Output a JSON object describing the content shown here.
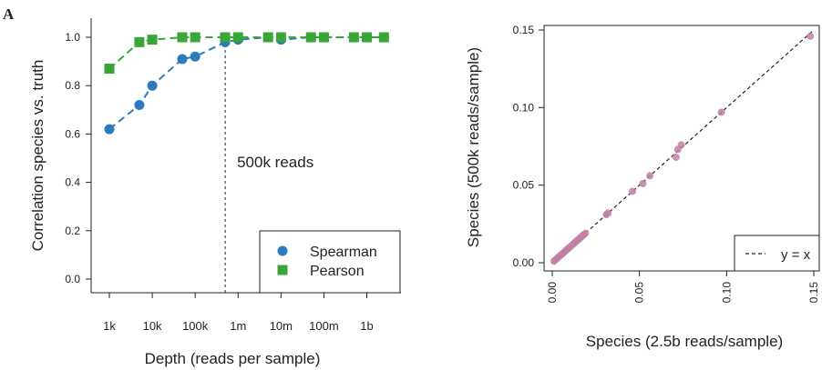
{
  "panel_label": "A",
  "chart_data": [
    {
      "type": "line",
      "xlabel": "Depth (reads per sample)",
      "ylabel": "Correlation species vs. truth",
      "ylim": [
        0,
        1.0
      ],
      "y_ticks": [
        "0.0",
        "0.2",
        "0.4",
        "0.6",
        "0.8",
        "1.0"
      ],
      "x_tick_labels": [
        "1k",
        "10k",
        "100k",
        "1m",
        "10m",
        "100m",
        "1b"
      ],
      "x_scale": "log10",
      "xlim_reads": [
        1000,
        3000000000
      ],
      "grid": false,
      "legend_position": "bottom-right",
      "annotation": {
        "text": "500k reads",
        "x_reads": 500000
      },
      "series": [
        {
          "name": "Spearman",
          "marker": "circle",
          "color": "#2b7bbd",
          "x_reads": [
            1000,
            5000,
            10000,
            50000,
            100000,
            500000,
            1000000,
            5000000,
            10000000,
            50000000,
            100000000,
            500000000,
            1000000000,
            2500000000
          ],
          "values": [
            0.62,
            0.72,
            0.8,
            0.91,
            0.92,
            0.98,
            0.99,
            1.0,
            0.99,
            1.0,
            1.0,
            1.0,
            1.0,
            1.0
          ]
        },
        {
          "name": "Pearson",
          "marker": "square",
          "color": "#3aa63a",
          "x_reads": [
            1000,
            5000,
            10000,
            50000,
            100000,
            500000,
            1000000,
            5000000,
            10000000,
            50000000,
            100000000,
            500000000,
            1000000000,
            2500000000
          ],
          "values": [
            0.87,
            0.98,
            0.99,
            1.0,
            1.0,
            1.0,
            1.0,
            1.0,
            1.0,
            1.0,
            1.0,
            1.0,
            1.0,
            1.0
          ]
        }
      ]
    },
    {
      "type": "scatter",
      "xlabel": "Species (2.5b reads/sample)",
      "ylabel": "Species (500k reads/sample)",
      "xlim": [
        0,
        0.15
      ],
      "ylim": [
        0,
        0.15
      ],
      "x_ticks": [
        "0.00",
        "0.05",
        "0.10",
        "0.15"
      ],
      "y_ticks": [
        "0.00",
        "0.05",
        "0.10",
        "0.15"
      ],
      "grid": false,
      "legend_position": "bottom-right",
      "reference_line": {
        "label": "y = x",
        "style": "dashed",
        "color": "#222222"
      },
      "point_color": "#c07fa4",
      "points": {
        "x": [
          0.001,
          0.002,
          0.003,
          0.004,
          0.005,
          0.006,
          0.007,
          0.008,
          0.009,
          0.01,
          0.011,
          0.012,
          0.013,
          0.014,
          0.015,
          0.016,
          0.017,
          0.018,
          0.019,
          0.031,
          0.032,
          0.046,
          0.052,
          0.056,
          0.071,
          0.072,
          0.074,
          0.097,
          0.148
        ],
        "y": [
          0.001,
          0.002,
          0.003,
          0.004,
          0.005,
          0.006,
          0.007,
          0.008,
          0.009,
          0.01,
          0.011,
          0.012,
          0.013,
          0.014,
          0.015,
          0.016,
          0.017,
          0.018,
          0.019,
          0.031,
          0.032,
          0.046,
          0.051,
          0.056,
          0.068,
          0.073,
          0.076,
          0.097,
          0.146
        ]
      }
    }
  ]
}
